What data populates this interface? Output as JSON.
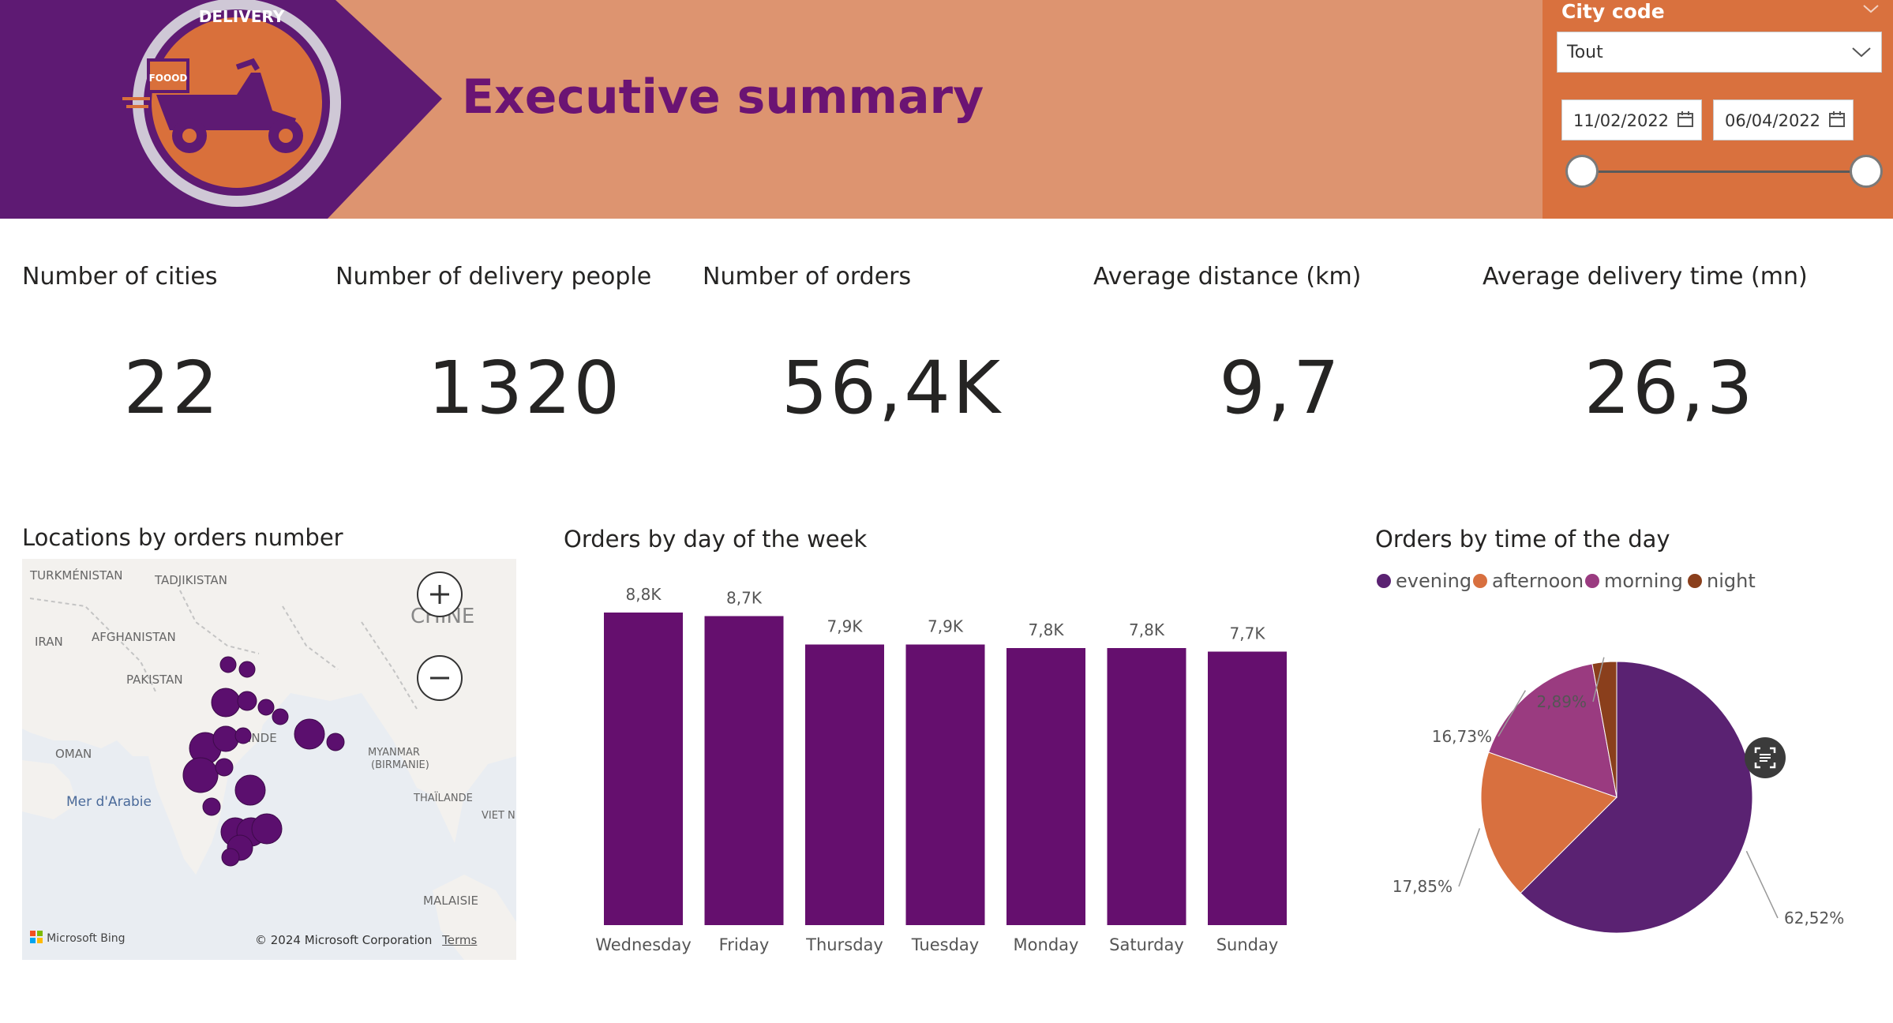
{
  "header": {
    "title": "Executive summary",
    "logo": {
      "icon": "delivery-scooter-logo-icon",
      "badge_text": "DELIVERY",
      "box_text": "FOOOD"
    },
    "colors": {
      "header_bg": "#dd9470",
      "logo_bg": "#5e1a73",
      "accent": "#6b1473",
      "slicer_bg": "#d9713e"
    }
  },
  "slicer": {
    "title": "City code",
    "selected": "Tout",
    "date_start": "11/02/2022",
    "date_end": "06/04/2022"
  },
  "kpis": [
    {
      "label": "Number of cities",
      "value": "22"
    },
    {
      "label": "Number of delivery people",
      "value": "1320"
    },
    {
      "label": "Number of orders",
      "value": "56,4K"
    },
    {
      "label": "Average distance (km)",
      "value": "9,7"
    },
    {
      "label": "Average delivery time (mn)",
      "value": "26,3"
    }
  ],
  "map": {
    "title": "Locations by orders number",
    "labels": {
      "turkmenistan": "TURKMÉNISTAN",
      "tajikistan": "TADJIKISTAN",
      "iran": "IRAN",
      "afghanistan": "AFGHANISTAN",
      "pakistan": "PAKISTAN",
      "oman": "OMAN",
      "sea": "Mer d'Arabie",
      "india": "INDE",
      "china": "CHINE",
      "myanmar_1": "MYANMAR",
      "myanmar_2": "(BIRMANIE)",
      "thailand": "THAÏLANDE",
      "vietnam": "VIET N",
      "malaysia": "MALAISIE"
    },
    "bing": "Microsoft Bing",
    "copyright": "© 2024 Microsoft Corporation",
    "terms": "Terms",
    "marker_color": "#5b0f6e"
  },
  "day_chart": {
    "title": "Orders by day of the week",
    "chart_data": {
      "type": "bar",
      "categories": [
        "Wednesday",
        "Friday",
        "Thursday",
        "Tuesday",
        "Monday",
        "Saturday",
        "Sunday"
      ],
      "values": [
        8.8,
        8.7,
        7.9,
        7.9,
        7.8,
        7.8,
        7.7
      ],
      "data_labels": [
        "8,8K",
        "8,7K",
        "7,9K",
        "7,9K",
        "7,8K",
        "7,8K",
        "7,7K"
      ],
      "unit": "K",
      "ylim": [
        0,
        8.8
      ],
      "color": "#650f6e"
    }
  },
  "time_chart": {
    "title": "Orders by time of the day",
    "chart_data": {
      "type": "pie",
      "categories": [
        "evening",
        "afternoon",
        "morning",
        "night"
      ],
      "values": [
        62.52,
        17.85,
        16.73,
        2.89
      ],
      "data_labels": [
        "62,52%",
        "17,85%",
        "16,73%",
        "2,89%"
      ],
      "colors": [
        "#5a2272",
        "#d8703f",
        "#9a3b80",
        "#8a3f1c"
      ],
      "legend": "top-left"
    }
  }
}
